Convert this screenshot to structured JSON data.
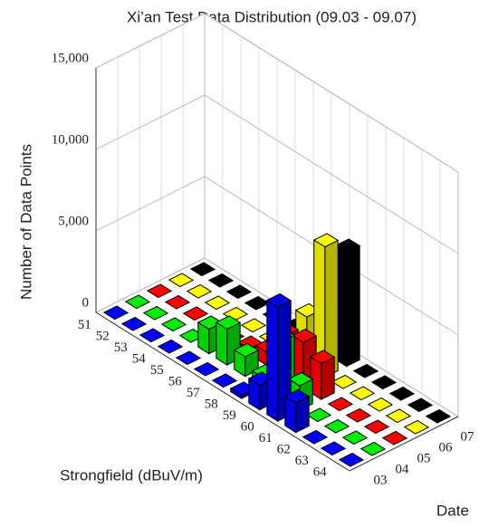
{
  "chart_data": {
    "type": "bar3d",
    "title": "Xi’an Test Data Distribution (09.03 - 09.07)",
    "xlabel": "Strongfield (dBuV/m)",
    "ylabel": "Date",
    "zlabel": "Number of Data Points",
    "categories": [
      "51",
      "52",
      "53",
      "54",
      "55",
      "56",
      "57",
      "58",
      "59",
      "60",
      "61",
      "62",
      "63",
      "64"
    ],
    "series": [
      {
        "name": "03",
        "color": "#0000ff",
        "values": [
          0,
          0,
          0,
          0,
          0,
          0,
          0,
          200,
          1500,
          7000,
          1800,
          0,
          0,
          0
        ]
      },
      {
        "name": "04",
        "color": "#00ee00",
        "values": [
          0,
          0,
          0,
          0,
          1500,
          2200,
          1200,
          600,
          3500,
          1500,
          0,
          0,
          0,
          0
        ]
      },
      {
        "name": "05",
        "color": "#ff0000",
        "values": [
          0,
          0,
          0,
          0,
          0,
          300,
          800,
          2500,
          2800,
          2200,
          0,
          0,
          0,
          0
        ]
      },
      {
        "name": "06",
        "color": "#ffff00",
        "values": [
          0,
          0,
          0,
          0,
          0,
          0,
          500,
          3000,
          8000,
          0,
          0,
          0,
          0,
          0
        ]
      },
      {
        "name": "07",
        "color": "#000000",
        "values": [
          0,
          0,
          0,
          0,
          0,
          0,
          0,
          0,
          7000,
          0,
          0,
          0,
          0,
          0
        ]
      }
    ],
    "zlim": [
      0,
      15000
    ],
    "zticks": [
      0,
      {
        "value": 5000,
        "label": "5,000"
      },
      {
        "value": 10000,
        "label": "10,000"
      },
      {
        "value": 15000,
        "label": "15,000"
      }
    ],
    "grid": true
  }
}
